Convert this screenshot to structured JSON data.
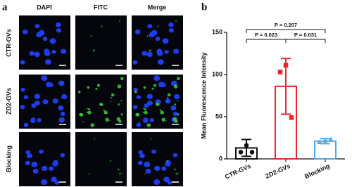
{
  "panel_a": {
    "label": "a",
    "columns": [
      "DAPI",
      "FITC",
      "Merge"
    ],
    "rows": [
      "CTR-GVs",
      "ZD2-GVs",
      "Blocking"
    ]
  },
  "chart_data": {
    "type": "bar",
    "label": "b",
    "ylabel": "Mean Fluorescence Intensity",
    "categories": [
      "CTR-GVs",
      "ZD2-GVs",
      "Blocking"
    ],
    "values": [
      13,
      86,
      21
    ],
    "errors": [
      10,
      33,
      3
    ],
    "points": [
      [
        16,
        8,
        8
      ],
      [
        111,
        103,
        49
      ],
      [
        22,
        20,
        23
      ]
    ],
    "markers": [
      "circle",
      "square",
      "triangle"
    ],
    "colors": [
      "#111111",
      "#e8262b",
      "#4ea7e8"
    ],
    "ylim": [
      0,
      150
    ],
    "yticks": [
      0,
      50,
      100,
      150
    ],
    "comparisons": [
      "P = 0.207",
      "P = 0.023",
      "P = 0.031"
    ]
  }
}
